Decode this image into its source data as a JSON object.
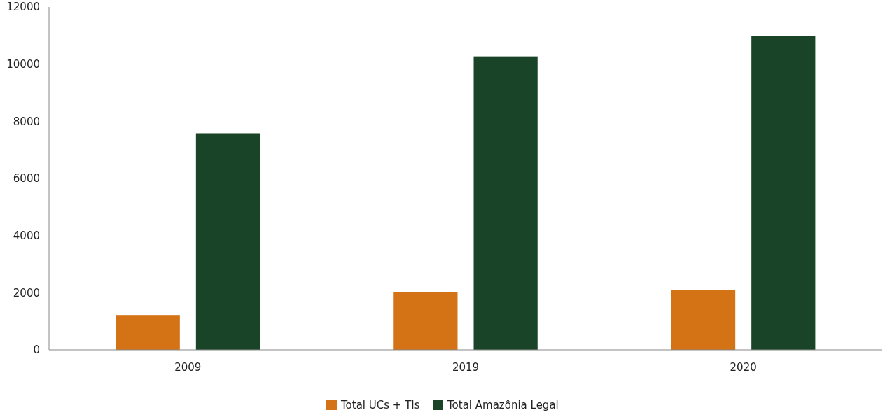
{
  "chart_data": {
    "type": "bar",
    "categories": [
      "2009",
      "2019",
      "2020"
    ],
    "series": [
      {
        "name": "Total UCs + TIs",
        "color": "#d37316",
        "values": [
          1220,
          2010,
          2090
        ]
      },
      {
        "name": "Total Amazônia Legal",
        "color": "#1a4427",
        "values": [
          7580,
          10270,
          10980
        ]
      }
    ],
    "ylim": [
      0,
      12000
    ],
    "yticks": [
      0,
      2000,
      4000,
      6000,
      8000,
      10000,
      12000
    ],
    "grid": false,
    "legend": "bottom"
  }
}
